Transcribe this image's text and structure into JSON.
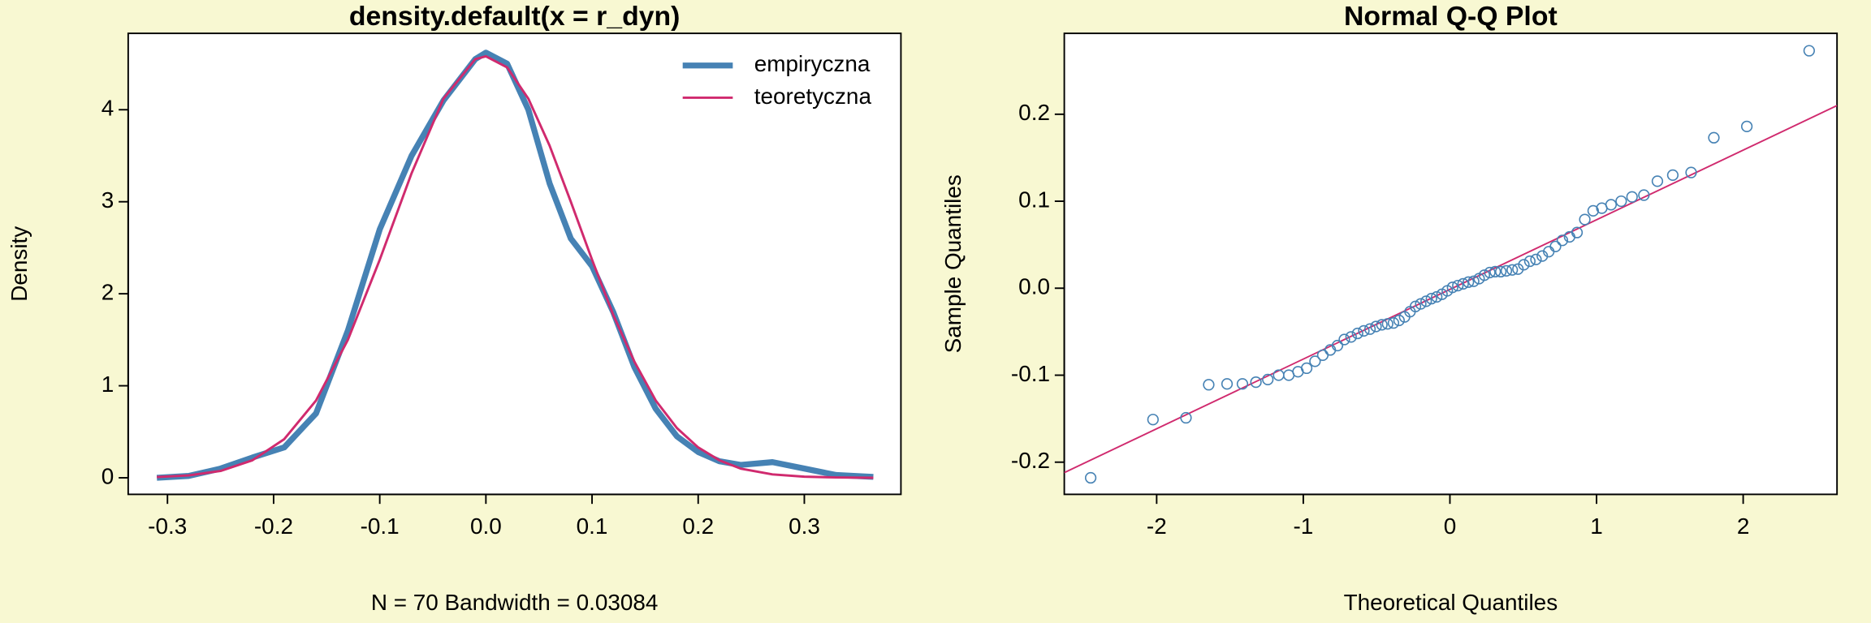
{
  "chart_data": [
    {
      "type": "line",
      "title": "density.default(x = r_dyn)",
      "x_label": "N = 70   Bandwidth = 0.03084",
      "y_label": "Density",
      "x": [
        -0.31,
        -0.28,
        -0.25,
        -0.22,
        -0.19,
        -0.16,
        -0.13,
        -0.1,
        -0.07,
        -0.04,
        -0.01,
        0,
        0.02,
        0.04,
        0.06,
        0.08,
        0.1,
        0.12,
        0.14,
        0.16,
        0.18,
        0.2,
        0.22,
        0.24,
        0.27,
        0.3,
        0.33,
        0.365
      ],
      "series": [
        {
          "name": "empiryczna",
          "color": "#4682b4",
          "width": 5,
          "values": [
            0.0,
            0.02,
            0.1,
            0.22,
            0.33,
            0.7,
            1.6,
            2.7,
            3.5,
            4.1,
            4.55,
            4.62,
            4.5,
            4.0,
            3.2,
            2.6,
            2.3,
            1.8,
            1.2,
            0.75,
            0.45,
            0.28,
            0.18,
            0.14,
            0.17,
            0.1,
            0.03,
            0.01
          ]
        },
        {
          "name": "teoretyczna",
          "color": "#d02a6e",
          "width": 2,
          "values": [
            0.008,
            0.026,
            0.074,
            0.19,
            0.42,
            0.84,
            1.5,
            2.37,
            3.31,
            4.12,
            4.55,
            4.58,
            4.46,
            4.12,
            3.61,
            3.0,
            2.37,
            1.77,
            1.26,
            0.84,
            0.54,
            0.33,
            0.19,
            0.1,
            0.037,
            0.012,
            0.004,
            0.0
          ]
        }
      ],
      "xlim": [
        -0.337,
        0.391
      ],
      "ylim": [
        -0.18,
        4.83
      ],
      "xticks": [
        -0.3,
        -0.2,
        -0.1,
        {
          "value": 0,
          "label": "0.0"
        },
        0.1,
        0.2,
        0.3
      ],
      "yticks": [
        0,
        1,
        2,
        3,
        4
      ],
      "legend": "topright"
    },
    {
      "type": "scatter",
      "title": "Normal Q-Q Plot",
      "x_label": "Theoretical Quantiles",
      "y_label": "Sample Quantiles",
      "color": "#4682b4",
      "x": [
        -2.45,
        -2.025,
        -1.8,
        -1.645,
        -1.52,
        -1.415,
        -1.323,
        -1.242,
        -1.168,
        -1.099,
        -1.036,
        -0.977,
        -0.92,
        -0.867,
        -0.816,
        -0.767,
        -0.72,
        -0.674,
        -0.63,
        -0.587,
        -0.545,
        -0.504,
        -0.464,
        -0.425,
        -0.385,
        -0.347,
        -0.309,
        -0.272,
        -0.235,
        -0.199,
        -0.162,
        -0.126,
        -0.09,
        -0.054,
        -0.018,
        0.018,
        0.054,
        0.09,
        0.126,
        0.162,
        0.199,
        0.235,
        0.272,
        0.309,
        0.347,
        0.385,
        0.425,
        0.464,
        0.504,
        0.545,
        0.587,
        0.63,
        0.674,
        0.72,
        0.767,
        0.816,
        0.867,
        0.92,
        0.977,
        1.036,
        1.099,
        1.168,
        1.242,
        1.323,
        1.415,
        1.52,
        1.645,
        1.8,
        2.025,
        2.45
      ],
      "values": [
        -0.218,
        -0.151,
        -0.149,
        -0.111,
        -0.11,
        -0.11,
        -0.108,
        -0.105,
        -0.1,
        -0.1,
        -0.096,
        -0.092,
        -0.084,
        -0.077,
        -0.071,
        -0.066,
        -0.059,
        -0.056,
        -0.052,
        -0.049,
        -0.047,
        -0.044,
        -0.042,
        -0.041,
        -0.04,
        -0.037,
        -0.033,
        -0.027,
        -0.021,
        -0.018,
        -0.015,
        -0.012,
        -0.01,
        -0.007,
        -0.003,
        0.001,
        0.003,
        0.005,
        0.007,
        0.008,
        0.011,
        0.015,
        0.018,
        0.019,
        0.019,
        0.02,
        0.021,
        0.022,
        0.027,
        0.031,
        0.033,
        0.037,
        0.042,
        0.048,
        0.055,
        0.059,
        0.064,
        0.079,
        0.089,
        0.092,
        0.096,
        0.1,
        0.105,
        0.107,
        0.123,
        0.13,
        0.133,
        0.173,
        0.186,
        0.273
      ],
      "reference_line": {
        "color": "#d02a6e",
        "x": [
          -2.63,
          2.64
        ],
        "values": [
          -0.212,
          0.21
        ]
      },
      "xlim": [
        -2.63,
        2.64
      ],
      "ylim": [
        -0.237,
        0.293
      ],
      "xticks": [
        -2,
        -1,
        0,
        1,
        2
      ],
      "yticks": [
        -0.2,
        -0.1,
        {
          "value": 0,
          "label": "0.0"
        },
        0.1,
        0.2
      ]
    }
  ]
}
